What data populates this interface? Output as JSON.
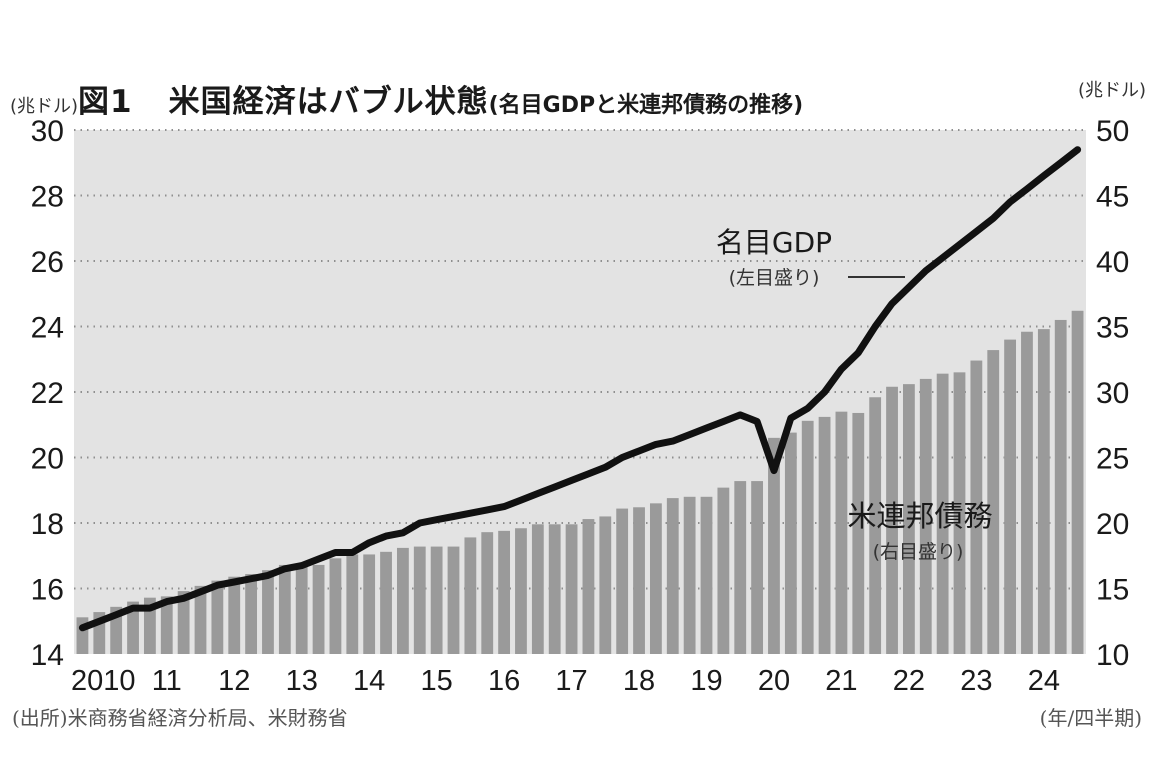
{
  "header": {
    "left_unit": "(兆ドル)",
    "figure_label": "図1",
    "title": "米国経済はバブル状態",
    "subtitle": "(名目GDPと米連邦債務の推移)",
    "right_unit": "(兆ドル)"
  },
  "footer": {
    "source": "(出所)米商務省経済分析局、米財務省",
    "period_unit": "(年/四半期)"
  },
  "colors": {
    "plot_background": "#e3e3e3",
    "bar": "#9a9a9a",
    "line": "#111111",
    "grid": "#8f8f8f"
  },
  "chart_data": {
    "type": "bar",
    "title": "米国経済はバブル状態",
    "subtitle": "(名目GDPと米連邦債務の推移)",
    "xlabel": "(年/四半期)",
    "ylabel": "(兆ドル)",
    "ylabel_right": "(兆ドル)",
    "grid": true,
    "ylim": [
      14,
      30
    ],
    "ylim_right": [
      10,
      50
    ],
    "yticks": [
      "30",
      "28",
      "26",
      "24",
      "22",
      "20",
      "18",
      "16",
      "14"
    ],
    "yticks_right": [
      "50",
      "45",
      "40",
      "35",
      "30",
      "25",
      "20",
      "15",
      "10"
    ],
    "x_tick_labels": [
      "2010",
      "11",
      "12",
      "13",
      "14",
      "15",
      "16",
      "17",
      "18",
      "19",
      "20",
      "21",
      "22",
      "23",
      "24"
    ],
    "quarters": [
      "2010Q1",
      "2010Q2",
      "2010Q3",
      "2010Q4",
      "2011Q1",
      "2011Q2",
      "2011Q3",
      "2011Q4",
      "2012Q1",
      "2012Q2",
      "2012Q3",
      "2012Q4",
      "2013Q1",
      "2013Q2",
      "2013Q3",
      "2013Q4",
      "2014Q1",
      "2014Q2",
      "2014Q3",
      "2014Q4",
      "2015Q1",
      "2015Q2",
      "2015Q3",
      "2015Q4",
      "2016Q1",
      "2016Q2",
      "2016Q3",
      "2016Q4",
      "2017Q1",
      "2017Q2",
      "2017Q3",
      "2017Q4",
      "2018Q1",
      "2018Q2",
      "2018Q3",
      "2018Q4",
      "2019Q1",
      "2019Q2",
      "2019Q3",
      "2019Q4",
      "2020Q1",
      "2020Q2",
      "2020Q3",
      "2020Q4",
      "2021Q1",
      "2021Q2",
      "2021Q3",
      "2021Q4",
      "2022Q1",
      "2022Q2",
      "2022Q3",
      "2022Q4",
      "2023Q1",
      "2023Q2",
      "2023Q3",
      "2023Q4",
      "2024Q1",
      "2024Q2",
      "2024Q3",
      "2024Q4"
    ],
    "series": [
      {
        "name": "米連邦債務",
        "label_note": "(右目盛り)",
        "type": "bar",
        "axis": "right",
        "values": [
          12.8,
          13.2,
          13.6,
          14.0,
          14.3,
          14.4,
          14.8,
          15.2,
          15.6,
          15.9,
          16.1,
          16.4,
          16.8,
          16.8,
          16.8,
          17.3,
          17.6,
          17.6,
          17.8,
          18.1,
          18.2,
          18.2,
          18.2,
          18.9,
          19.3,
          19.4,
          19.6,
          19.9,
          19.9,
          19.9,
          20.3,
          20.5,
          21.1,
          21.2,
          21.5,
          21.9,
          22.0,
          22.0,
          22.7,
          23.2,
          23.2,
          26.5,
          26.9,
          27.8,
          28.1,
          28.5,
          28.4,
          29.6,
          30.4,
          30.6,
          31.0,
          31.4,
          31.5,
          32.4,
          33.2,
          34.0,
          34.6,
          34.8,
          35.5,
          36.2
        ]
      },
      {
        "name": "名目GDP",
        "label_note": "(左目盛り)",
        "type": "line",
        "axis": "left",
        "values": [
          14.8,
          15.0,
          15.2,
          15.4,
          15.4,
          15.6,
          15.7,
          15.9,
          16.1,
          16.2,
          16.3,
          16.4,
          16.6,
          16.7,
          16.9,
          17.1,
          17.1,
          17.4,
          17.6,
          17.7,
          18.0,
          18.1,
          18.2,
          18.3,
          18.4,
          18.5,
          18.7,
          18.9,
          19.1,
          19.3,
          19.5,
          19.7,
          20.0,
          20.2,
          20.4,
          20.5,
          20.7,
          20.9,
          21.1,
          21.3,
          21.1,
          19.6,
          21.2,
          21.5,
          22.0,
          22.7,
          23.2,
          24.0,
          24.7,
          25.2,
          25.7,
          26.1,
          26.5,
          26.9,
          27.3,
          27.8,
          28.2,
          28.6,
          29.0,
          29.4
        ]
      }
    ],
    "annotations": [
      {
        "text": "名目GDP",
        "sub": "(左目盛り)",
        "target": "名目GDP"
      },
      {
        "text": "米連邦債務",
        "sub": "(右目盛り)",
        "target": "米連邦債務"
      }
    ]
  }
}
